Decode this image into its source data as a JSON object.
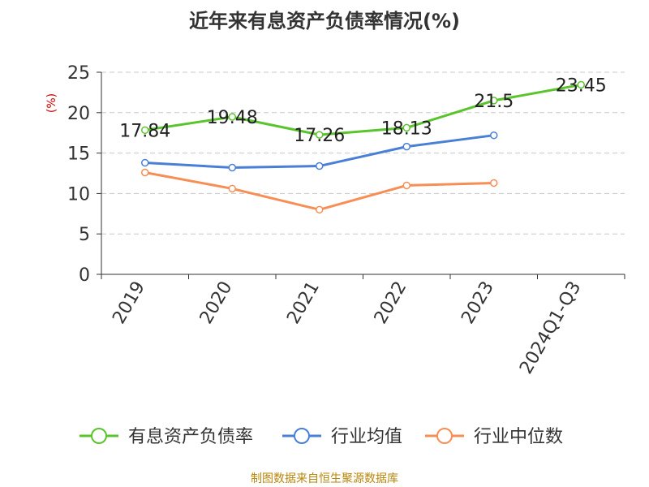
{
  "chart_data": {
    "type": "line",
    "title": "近年来有息资产负债率情况(%)",
    "xlabel": "",
    "ylabel": "(%)",
    "categories": [
      "2019",
      "2020",
      "2021",
      "2022",
      "2023",
      "2024Q1-Q3"
    ],
    "ylim": [
      0,
      25
    ],
    "yticks": [
      0,
      5,
      10,
      15,
      20,
      25
    ],
    "grid": true,
    "legend_position": "bottom",
    "series": [
      {
        "name": "有息资产负债率",
        "color": "#5ac42d",
        "values": [
          17.84,
          19.48,
          17.26,
          18.13,
          21.5,
          23.45
        ],
        "labels": [
          "17.84",
          "19.48",
          "17.26",
          "18.13",
          "21.5",
          "23.45"
        ]
      },
      {
        "name": "行业均值",
        "color": "#4a7fd6",
        "values": [
          13.8,
          13.2,
          13.4,
          15.8,
          17.2,
          null
        ]
      },
      {
        "name": "行业中位数",
        "color": "#f68e55",
        "values": [
          12.6,
          10.6,
          8.0,
          11.0,
          11.3,
          null
        ]
      }
    ],
    "ylabel_color": "#cc0000"
  },
  "source": "制图数据来自恒生聚源数据库"
}
